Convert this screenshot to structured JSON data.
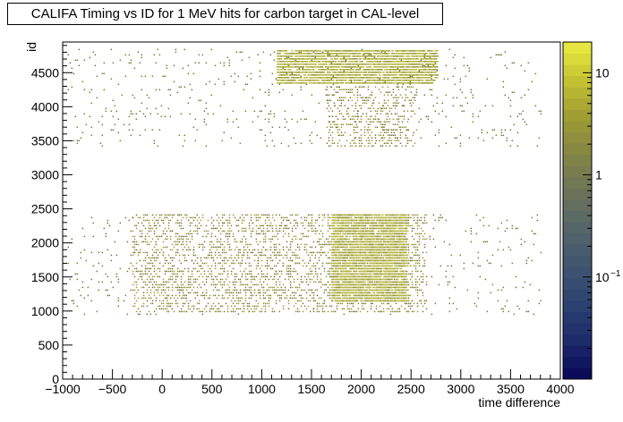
{
  "chart_data": {
    "type": "heatmap",
    "title": "CALIFA Timing vs ID for 1 MeV hits for carbon target in CAL-level",
    "xlabel": "time difference",
    "ylabel": "id",
    "xlim": [
      -1000,
      4000
    ],
    "ylim": [
      0,
      4950
    ],
    "x_ticks": [
      "−1000",
      "−500",
      "0",
      "500",
      "1000",
      "1500",
      "2000",
      "2500",
      "3000",
      "3500",
      "4000"
    ],
    "x_tick_values": [
      -1000,
      -500,
      0,
      500,
      1000,
      1500,
      2000,
      2500,
      3000,
      3500,
      4000
    ],
    "y_ticks": [
      "0",
      "500",
      "1000",
      "1500",
      "2000",
      "2500",
      "3000",
      "3500",
      "4000",
      "4500"
    ],
    "y_tick_values": [
      0,
      500,
      1000,
      1500,
      2000,
      2500,
      3000,
      3500,
      4000,
      4500
    ],
    "z_scale": "log",
    "z_range": [
      0.01,
      20
    ],
    "z_ticks": [
      {
        "label": "10",
        "value": 10
      },
      {
        "label": "1",
        "value": 1
      },
      {
        "label": "10",
        "sup": "−1",
        "value": 0.1
      }
    ],
    "colormap": [
      "#0b0b5a",
      "#1d2a6b",
      "#2a3f6f",
      "#3a5070",
      "#4c5f6c",
      "#5f6c62",
      "#747a52",
      "#8a8a40",
      "#a2a032",
      "#c2c232",
      "#e6e640"
    ],
    "regions": [
      {
        "name": "lower band",
        "x_range": [
          -950,
          3800
        ],
        "id_range": [
          950,
          2420
        ],
        "density": "sparse"
      },
      {
        "name": "lower band core",
        "x_range": [
          -300,
          2650
        ],
        "id_range": [
          1000,
          2420
        ],
        "density": "medium"
      },
      {
        "name": "lower band peak",
        "x_range": [
          1700,
          2450
        ],
        "id_range": [
          1150,
          2420
        ],
        "density": "high"
      },
      {
        "name": "upper band",
        "x_range": [
          -950,
          3800
        ],
        "id_range": [
          3400,
          4850
        ],
        "density": "sparse"
      },
      {
        "name": "upper band core",
        "x_range": [
          1650,
          2550
        ],
        "id_range": [
          3400,
          4300
        ],
        "density": "medium"
      },
      {
        "name": "upper band top",
        "x_range": [
          1150,
          2750
        ],
        "id_range": [
          4350,
          4830
        ],
        "density": "high"
      }
    ]
  }
}
